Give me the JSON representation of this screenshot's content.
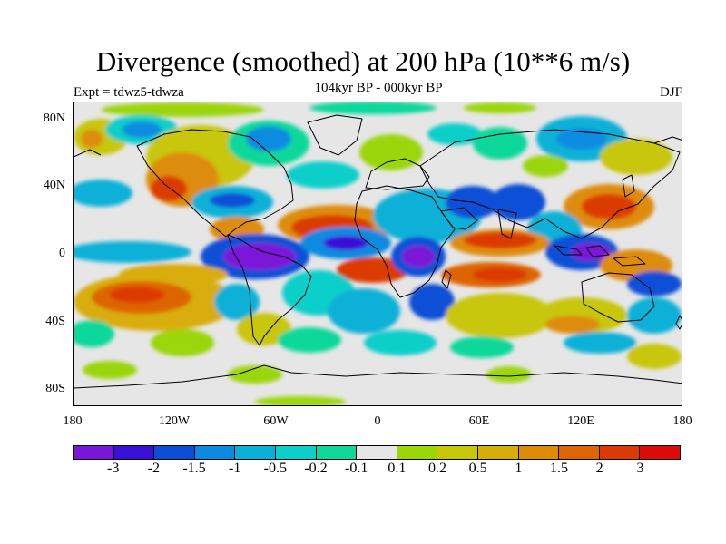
{
  "title": "Divergence (smoothed) at 200 hPa (10**6 m/s)",
  "subtitle": "104kyr BP - 000kyr BP",
  "expt": "Expt = tdwz5-tdwza",
  "season": "DJF",
  "y_axis": {
    "labels": [
      "80N",
      "40N",
      "0",
      "40S",
      "80S"
    ],
    "values": [
      80,
      40,
      0,
      -40,
      -80
    ]
  },
  "x_axis": {
    "labels": [
      "180",
      "120W",
      "60W",
      "0",
      "60E",
      "120E",
      "180"
    ],
    "values": [
      -180,
      -120,
      -60,
      0,
      60,
      120,
      180
    ]
  },
  "colorbar": {
    "colors": [
      "#7b16d8",
      "#3a10d6",
      "#0c4fd6",
      "#0b8be0",
      "#09b1d8",
      "#0ccfc9",
      "#10d89b",
      "#e6e6e6",
      "#9bd609",
      "#c8c609",
      "#d9ad09",
      "#de8c08",
      "#dd6506",
      "#dc3a05",
      "#dd0a0a"
    ],
    "labels": [
      "-3",
      "-2",
      "-1.5",
      "-1",
      "-0.5",
      "-0.2",
      "-0.1",
      "0.1",
      "0.2",
      "0.5",
      "1",
      "1.5",
      "2",
      "3"
    ]
  }
}
